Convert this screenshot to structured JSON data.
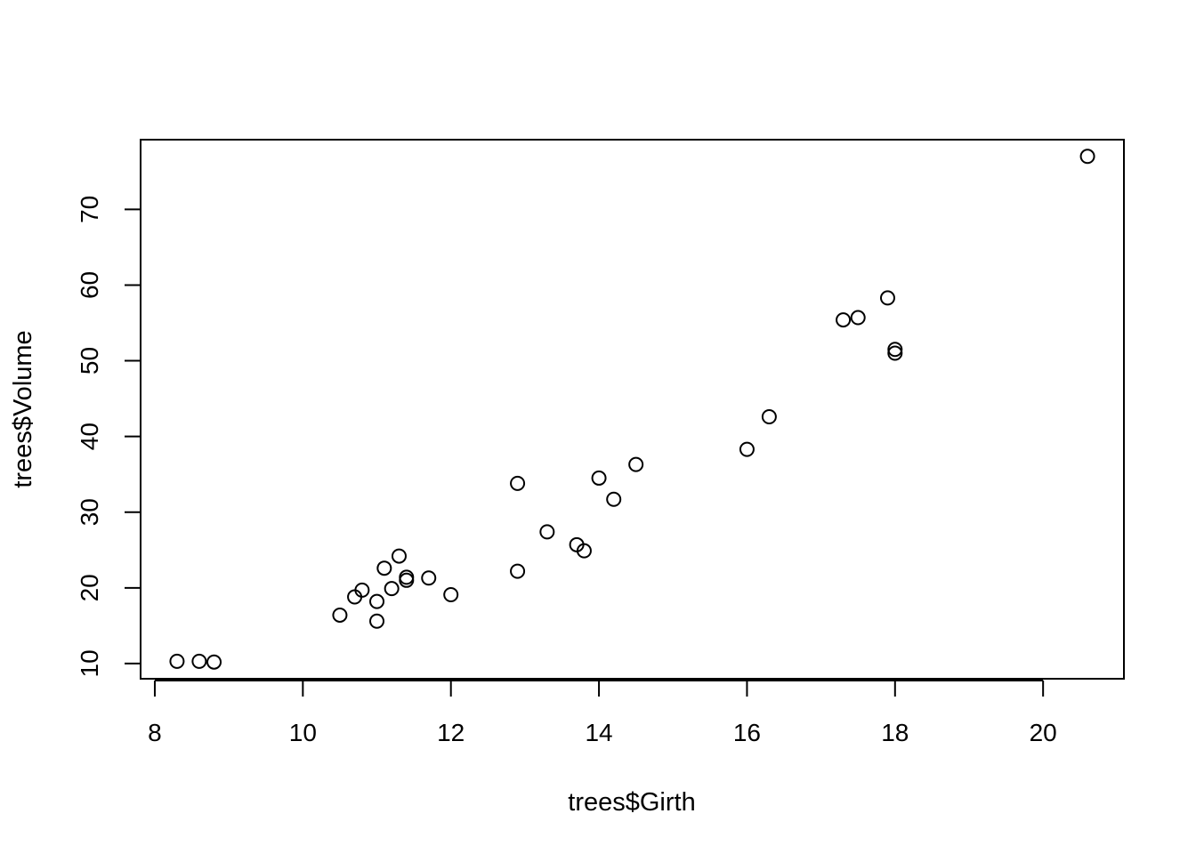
{
  "chart_data": {
    "type": "scatter",
    "title": "",
    "xlabel": "trees$Girth",
    "ylabel": "trees$Volume",
    "xlim": [
      7.808,
      21.092
    ],
    "ylim": [
      7.992,
      79.208
    ],
    "xticks": [
      8,
      10,
      12,
      14,
      16,
      18,
      20
    ],
    "yticks": [
      10,
      20,
      30,
      40,
      50,
      60,
      70
    ],
    "grid": false,
    "legend": "none",
    "marker": "open-circle",
    "colors": {
      "point": "#000000",
      "axis": "#000000",
      "background": "#ffffff"
    },
    "series": [
      {
        "x": [
          8.3,
          8.6,
          8.8,
          10.5,
          10.7,
          10.8,
          11.0,
          11.0,
          11.1,
          11.2,
          11.3,
          11.4,
          11.4,
          11.7,
          12.0,
          12.9,
          12.9,
          13.3,
          13.7,
          13.8,
          14.0,
          14.2,
          14.5,
          16.0,
          16.3,
          17.3,
          17.5,
          17.9,
          18.0,
          18.0,
          20.6
        ],
        "y": [
          10.3,
          10.3,
          10.2,
          16.4,
          18.8,
          19.7,
          15.6,
          18.2,
          22.6,
          19.9,
          24.2,
          21.0,
          21.4,
          21.3,
          19.1,
          22.2,
          33.8,
          27.4,
          25.7,
          24.9,
          34.5,
          31.7,
          36.3,
          38.3,
          42.6,
          55.4,
          55.7,
          58.3,
          51.5,
          51.0,
          77.0
        ]
      }
    ]
  }
}
